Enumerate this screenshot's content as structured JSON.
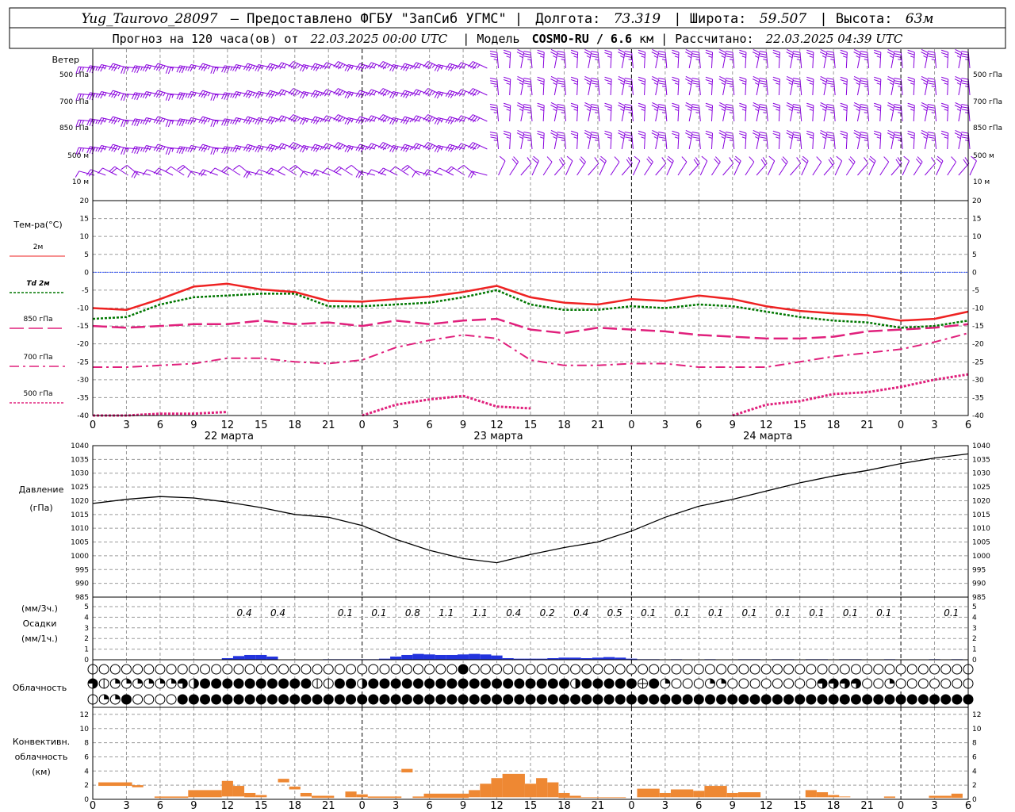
{
  "header": {
    "line1_station": "Yug_Taurovo_28097",
    "line1_provider": "– Предоставлено ФГБУ \"ЗапСиб УГМС\" |",
    "line1_lon_label": "Долгота:",
    "line1_lon": "73.319",
    "line1_lat_label": "| Широта:",
    "line1_lat": "59.507",
    "line1_alt_label": "| Высота:",
    "line1_alt": "63м",
    "line2_a": "Прогноз на 120 часа(ов) от",
    "line2_date": "22.03.2025 00:00 UTC",
    "line2_b": "| Модель",
    "line2_model": "COSMO-RU / 6.6",
    "line2_c": "км | Рассчитано:",
    "line2_calc": "22.03.2025 04:39 UTC"
  },
  "wind": {
    "title": "Ветер",
    "levels": [
      "500 гПа",
      "700 гПа",
      "850 гПа",
      "500 м",
      "10  м"
    ],
    "color": "#8800dd"
  },
  "chart_data": [
    {
      "type": "line",
      "name": "temperature",
      "ylabel": "Тем-ра(°С)",
      "ylim": [
        -40,
        20
      ],
      "yticks": [
        20,
        15,
        10,
        5,
        0,
        -5,
        -10,
        -15,
        -20,
        -25,
        -30,
        -35,
        -40
      ],
      "x_hours": [
        0,
        3,
        6,
        9,
        12,
        15,
        18,
        21,
        24,
        27,
        30,
        33,
        36,
        39,
        42,
        45,
        48,
        51,
        54,
        57,
        60,
        63,
        66,
        69,
        72,
        75,
        78
      ],
      "series": [
        {
          "name": "2м",
          "color": "#ee2222",
          "values": [
            -10.0,
            -10.5,
            -7.5,
            -4.0,
            -3.2,
            -4.8,
            -5.5,
            -8.0,
            -8.2,
            -7.5,
            -6.8,
            -5.5,
            -3.8,
            -7.0,
            -8.5,
            -9.0,
            -7.5,
            -8.0,
            -6.5,
            -7.5,
            -9.5,
            -10.8,
            -11.5,
            -12.0,
            -13.5,
            -13.0,
            -11.0
          ]
        },
        {
          "name": "Td  2м",
          "color": "#007700",
          "values": [
            -13.0,
            -12.5,
            -9.0,
            -7.0,
            -6.5,
            -6.0,
            -6.0,
            -9.5,
            -9.5,
            -9.0,
            -8.5,
            -7.0,
            -5.0,
            -9.0,
            -10.5,
            -10.5,
            -9.5,
            -10.0,
            -9.0,
            -9.5,
            -11.0,
            -12.5,
            -13.5,
            -14.0,
            -15.5,
            -15.0,
            -13.5
          ]
        },
        {
          "name": "850 гПа",
          "color": "#e0207c",
          "values": [
            -15.0,
            -15.5,
            -15.0,
            -14.5,
            -14.5,
            -13.5,
            -14.5,
            -14.0,
            -15.0,
            -13.5,
            -14.5,
            -13.5,
            -13.0,
            -16.0,
            -17.0,
            -15.5,
            -16.0,
            -16.5,
            -17.5,
            -18.0,
            -18.5,
            -18.5,
            -18.0,
            -16.5,
            -16.0,
            -15.5,
            -14.5
          ]
        },
        {
          "name": "700 гПа",
          "color": "#e0207c",
          "values": [
            -26.5,
            -26.5,
            -26.0,
            -25.5,
            -24.0,
            -24.0,
            -25.0,
            -25.5,
            -24.5,
            -21.0,
            -19.0,
            -17.5,
            -18.5,
            -24.5,
            -26.0,
            -26.0,
            -25.5,
            -25.5,
            -26.5,
            -26.5,
            -26.5,
            -25.0,
            -23.5,
            -22.5,
            -21.5,
            -19.5,
            -17.0
          ]
        },
        {
          "name": "500 гПа",
          "color": "#e0207c",
          "values": [
            -40.0,
            -40.0,
            -39.5,
            -39.5,
            -39.0,
            null,
            null,
            null,
            -40.0,
            -37.0,
            -35.5,
            -34.5,
            -37.5,
            -38.0,
            null,
            null,
            null,
            null,
            null,
            -40.0,
            -37.0,
            -36.0,
            -34.0,
            -33.5,
            -32.0,
            -30.0,
            -28.5
          ]
        }
      ],
      "zero_line_color": "#3355ff"
    },
    {
      "type": "line",
      "name": "pressure",
      "ylabel": "Давление",
      "ylabel2": "(гПа)",
      "ylim": [
        985,
        1040
      ],
      "yticks": [
        1040,
        1035,
        1030,
        1025,
        1020,
        1015,
        1010,
        1005,
        1000,
        995,
        990,
        985
      ],
      "x_hours": [
        0,
        3,
        6,
        9,
        12,
        15,
        18,
        21,
        24,
        27,
        30,
        33,
        36,
        39,
        42,
        45,
        48,
        51,
        54,
        57,
        60,
        63,
        66,
        69,
        72,
        75,
        78
      ],
      "series": [
        {
          "name": "pressure",
          "color": "#000000",
          "values": [
            1019.0,
            1020.5,
            1021.5,
            1021.0,
            1019.5,
            1017.5,
            1015.0,
            1014.0,
            1011.0,
            1006.0,
            1002.0,
            999.0,
            997.5,
            1000.5,
            1003.0,
            1005.0,
            1009.0,
            1014.0,
            1018.0,
            1020.5,
            1023.5,
            1026.5,
            1029.0,
            1031.0,
            1033.5,
            1035.5,
            1037.0
          ]
        }
      ]
    },
    {
      "type": "bar",
      "name": "precipitation",
      "ylabel": "Осадки",
      "ylabel_top": "(мм/3ч.)",
      "ylabel_bottom": "(мм/1ч.)",
      "ylim": [
        0,
        5
      ],
      "yticks": [
        5,
        4,
        3,
        2,
        1,
        0
      ],
      "color": "#2233dd",
      "labels_3h": [
        {
          "h": 13.5,
          "v": "0.4"
        },
        {
          "h": 16.5,
          "v": "0.4"
        },
        {
          "h": 22.5,
          "v": "0.1"
        },
        {
          "h": 25.5,
          "v": "0.1"
        },
        {
          "h": 28.5,
          "v": "0.8"
        },
        {
          "h": 31.5,
          "v": "1.1"
        },
        {
          "h": 34.5,
          "v": "1.1"
        },
        {
          "h": 37.5,
          "v": "0.4"
        },
        {
          "h": 40.5,
          "v": "0.2"
        },
        {
          "h": 43.5,
          "v": "0.4"
        },
        {
          "h": 46.5,
          "v": "0.5"
        },
        {
          "h": 49.5,
          "v": "0.1"
        },
        {
          "h": 52.5,
          "v": "0.1"
        },
        {
          "h": 55.5,
          "v": "0.1"
        },
        {
          "h": 58.5,
          "v": "0.1"
        },
        {
          "h": 61.5,
          "v": "0.1"
        },
        {
          "h": 64.5,
          "v": "0.1"
        },
        {
          "h": 67.5,
          "v": "0.1"
        },
        {
          "h": 70.5,
          "v": "0.1"
        },
        {
          "h": 76.5,
          "v": "0.1"
        }
      ],
      "hourly": [
        {
          "h": 12,
          "v": 0.15
        },
        {
          "h": 13,
          "v": 0.35
        },
        {
          "h": 14,
          "v": 0.45
        },
        {
          "h": 15,
          "v": 0.45
        },
        {
          "h": 16,
          "v": 0.3
        },
        {
          "h": 21,
          "v": 0.05
        },
        {
          "h": 22,
          "v": 0.05
        },
        {
          "h": 23,
          "v": 0.05
        },
        {
          "h": 24,
          "v": 0.05
        },
        {
          "h": 25,
          "v": 0.05
        },
        {
          "h": 26,
          "v": 0.1
        },
        {
          "h": 27,
          "v": 0.3
        },
        {
          "h": 28,
          "v": 0.45
        },
        {
          "h": 29,
          "v": 0.55
        },
        {
          "h": 30,
          "v": 0.5
        },
        {
          "h": 31,
          "v": 0.45
        },
        {
          "h": 32,
          "v": 0.45
        },
        {
          "h": 33,
          "v": 0.5
        },
        {
          "h": 34,
          "v": 0.55
        },
        {
          "h": 35,
          "v": 0.5
        },
        {
          "h": 36,
          "v": 0.4
        },
        {
          "h": 37,
          "v": 0.15
        },
        {
          "h": 38,
          "v": 0.1
        },
        {
          "h": 39,
          "v": 0.1
        },
        {
          "h": 40,
          "v": 0.1
        },
        {
          "h": 41,
          "v": 0.15
        },
        {
          "h": 42,
          "v": 0.2
        },
        {
          "h": 43,
          "v": 0.2
        },
        {
          "h": 44,
          "v": 0.15
        },
        {
          "h": 45,
          "v": 0.2
        },
        {
          "h": 46,
          "v": 0.25
        },
        {
          "h": 47,
          "v": 0.2
        },
        {
          "h": 48,
          "v": 0.1
        },
        {
          "h": 49,
          "v": 0.05
        },
        {
          "h": 50,
          "v": 0.05
        },
        {
          "h": 52,
          "v": 0.05
        },
        {
          "h": 55,
          "v": 0.05
        },
        {
          "h": 58,
          "v": 0.05
        },
        {
          "h": 59,
          "v": 0.05
        },
        {
          "h": 61,
          "v": 0.05
        },
        {
          "h": 62,
          "v": 0.05
        },
        {
          "h": 64,
          "v": 0.05
        },
        {
          "h": 65,
          "v": 0.05
        },
        {
          "h": 67,
          "v": 0.05
        },
        {
          "h": 68,
          "v": 0.05
        },
        {
          "h": 71,
          "v": 0.05
        },
        {
          "h": 75,
          "v": 0.05
        },
        {
          "h": 77,
          "v": 0.05
        }
      ]
    },
    {
      "type": "bar",
      "name": "convective_cloud",
      "ylabel": "Конвективн.",
      "ylabel2": "облачность",
      "ylabel3": "(км)",
      "ylim": [
        0,
        13
      ],
      "yticks": [
        12,
        10,
        8,
        6,
        4,
        2,
        0
      ],
      "color": "#ee8833",
      "bars": [
        {
          "h0": 0.5,
          "h1": 3.5,
          "bot": 1.9,
          "top": 2.4
        },
        {
          "h0": 3.5,
          "h1": 4.5,
          "bot": 1.7,
          "top": 2.0
        },
        {
          "h0": 5.5,
          "h1": 8.5,
          "bot": 0.2,
          "top": 0.4
        },
        {
          "h0": 8.5,
          "h1": 11.5,
          "bot": 0.3,
          "top": 1.3
        },
        {
          "h0": 11.5,
          "h1": 12.5,
          "bot": 0.4,
          "top": 2.6
        },
        {
          "h0": 12.5,
          "h1": 13.5,
          "bot": 0.4,
          "top": 1.9
        },
        {
          "h0": 13.5,
          "h1": 14.5,
          "bot": 0.3,
          "top": 0.9
        },
        {
          "h0": 14.5,
          "h1": 15.5,
          "bot": 0.3,
          "top": 0.6
        },
        {
          "h0": 16.5,
          "h1": 17.5,
          "bot": 2.4,
          "top": 2.9
        },
        {
          "h0": 17.5,
          "h1": 18.5,
          "bot": 1.4,
          "top": 1.8
        },
        {
          "h0": 18.5,
          "h1": 19.5,
          "bot": 0.4,
          "top": 0.9
        },
        {
          "h0": 19.5,
          "h1": 21.5,
          "bot": 0.2,
          "top": 0.5
        },
        {
          "h0": 22.5,
          "h1": 23.5,
          "bot": 0.3,
          "top": 1.1
        },
        {
          "h0": 23.5,
          "h1": 24.5,
          "bot": 0.3,
          "top": 0.7
        },
        {
          "h0": 24.5,
          "h1": 27.5,
          "bot": 0.2,
          "top": 0.4
        },
        {
          "h0": 27.5,
          "h1": 28.5,
          "bot": 3.8,
          "top": 4.3
        },
        {
          "h0": 28.5,
          "h1": 29.5,
          "bot": 0.2,
          "top": 0.4
        },
        {
          "h0": 29.5,
          "h1": 33.5,
          "bot": 0.2,
          "top": 0.8
        },
        {
          "h0": 33.5,
          "h1": 34.5,
          "bot": 0.3,
          "top": 1.3
        },
        {
          "h0": 34.5,
          "h1": 35.5,
          "bot": 0.3,
          "top": 2.2
        },
        {
          "h0": 35.5,
          "h1": 36.5,
          "bot": 0.3,
          "top": 3.0
        },
        {
          "h0": 36.5,
          "h1": 38.5,
          "bot": 0.3,
          "top": 3.6
        },
        {
          "h0": 38.5,
          "h1": 39.5,
          "bot": 0.3,
          "top": 2.2
        },
        {
          "h0": 39.5,
          "h1": 40.5,
          "bot": 0.3,
          "top": 3.0
        },
        {
          "h0": 40.5,
          "h1": 41.5,
          "bot": 0.3,
          "top": 2.4
        },
        {
          "h0": 41.5,
          "h1": 42.5,
          "bot": 0.2,
          "top": 0.9
        },
        {
          "h0": 42.5,
          "h1": 43.5,
          "bot": 0.2,
          "top": 0.5
        },
        {
          "h0": 43.5,
          "h1": 47.5,
          "bot": 0.2,
          "top": 0.3
        },
        {
          "h0": 48.5,
          "h1": 50.5,
          "bot": 0.3,
          "top": 1.5
        },
        {
          "h0": 50.5,
          "h1": 51.5,
          "bot": 0.3,
          "top": 0.9
        },
        {
          "h0": 51.5,
          "h1": 53.5,
          "bot": 0.3,
          "top": 1.4
        },
        {
          "h0": 53.5,
          "h1": 54.5,
          "bot": 0.3,
          "top": 1.2
        },
        {
          "h0": 54.5,
          "h1": 56.5,
          "bot": 0.3,
          "top": 1.9
        },
        {
          "h0": 56.5,
          "h1": 57.5,
          "bot": 0.3,
          "top": 0.9
        },
        {
          "h0": 57.5,
          "h1": 59.5,
          "bot": 0.3,
          "top": 1.0
        },
        {
          "h0": 63.5,
          "h1": 64.5,
          "bot": 0.3,
          "top": 1.3
        },
        {
          "h0": 64.5,
          "h1": 65.5,
          "bot": 0.3,
          "top": 1.0
        },
        {
          "h0": 65.5,
          "h1": 66.5,
          "bot": 0.3,
          "top": 0.6
        },
        {
          "h0": 66.5,
          "h1": 67.5,
          "bot": 0.3,
          "top": 0.4
        },
        {
          "h0": 70.5,
          "h1": 71.5,
          "bot": 0.2,
          "top": 0.4
        },
        {
          "h0": 74.5,
          "h1": 76.5,
          "bot": 0.2,
          "top": 0.5
        },
        {
          "h0": 76.5,
          "h1": 77.5,
          "bot": 0.2,
          "top": 0.8
        }
      ]
    }
  ],
  "cloud": {
    "title": "Облачность",
    "rows": [
      "000000000000000000000000000000000400000000000000000000000000000000000000000000",
      "312222223B44444444441144B444444444444444444B44444E420002200000000333300200000000",
      "1224000044444444444444444444444444444444444444444444444444444444444444444444444444"
    ]
  },
  "xaxis": {
    "hour_labels": [
      "0",
      "3",
      "6",
      "9",
      "12",
      "15",
      "18",
      "21",
      "0",
      "3",
      "6",
      "9",
      "12",
      "15",
      "18",
      "21",
      "0",
      "3",
      "6",
      "9",
      "12",
      "15",
      "18",
      "21",
      "0",
      "3",
      "6"
    ],
    "days": [
      {
        "h": 12,
        "label": "22 марта"
      },
      {
        "h": 36,
        "label": "23 марта"
      },
      {
        "h": 60,
        "label": "24 марта"
      }
    ]
  }
}
